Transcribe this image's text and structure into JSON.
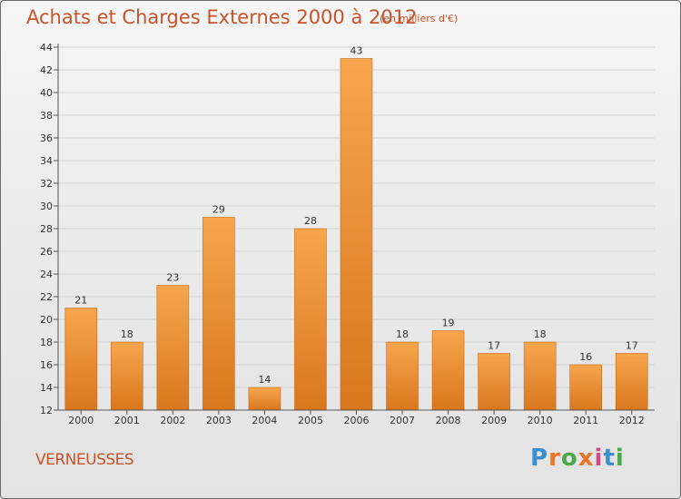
{
  "header": {
    "title": "Achats et Charges Externes 2000 à 2012",
    "subtitle": "(en milliers d'€)"
  },
  "footer": {
    "town": "VERNEUSSES",
    "logo_text": "Proxiti",
    "logo_colors": [
      "#3a8fd0",
      "#e8732a",
      "#4aa84a",
      "#e8732a",
      "#d04a8a",
      "#3a8fd0",
      "#4aa84a"
    ]
  },
  "colors": {
    "bar_light": "#f7a64e",
    "bar_dark": "#d9771e",
    "accent_text": "#c8542a"
  },
  "chart_data": {
    "type": "bar",
    "title": "Achats et Charges Externes 2000 à 2012",
    "subtitle": "(en milliers d'€)",
    "categories": [
      "2000",
      "2001",
      "2002",
      "2003",
      "2004",
      "2005",
      "2006",
      "2007",
      "2008",
      "2009",
      "2010",
      "2011",
      "2012"
    ],
    "values": [
      21,
      18,
      23,
      29,
      14,
      28,
      43,
      18,
      19,
      17,
      18,
      16,
      17
    ],
    "ylim": [
      12,
      44
    ],
    "yticks": [
      12,
      14,
      16,
      18,
      20,
      22,
      24,
      26,
      28,
      30,
      32,
      34,
      36,
      38,
      40,
      42,
      44
    ],
    "grid": true,
    "legend": "none"
  }
}
